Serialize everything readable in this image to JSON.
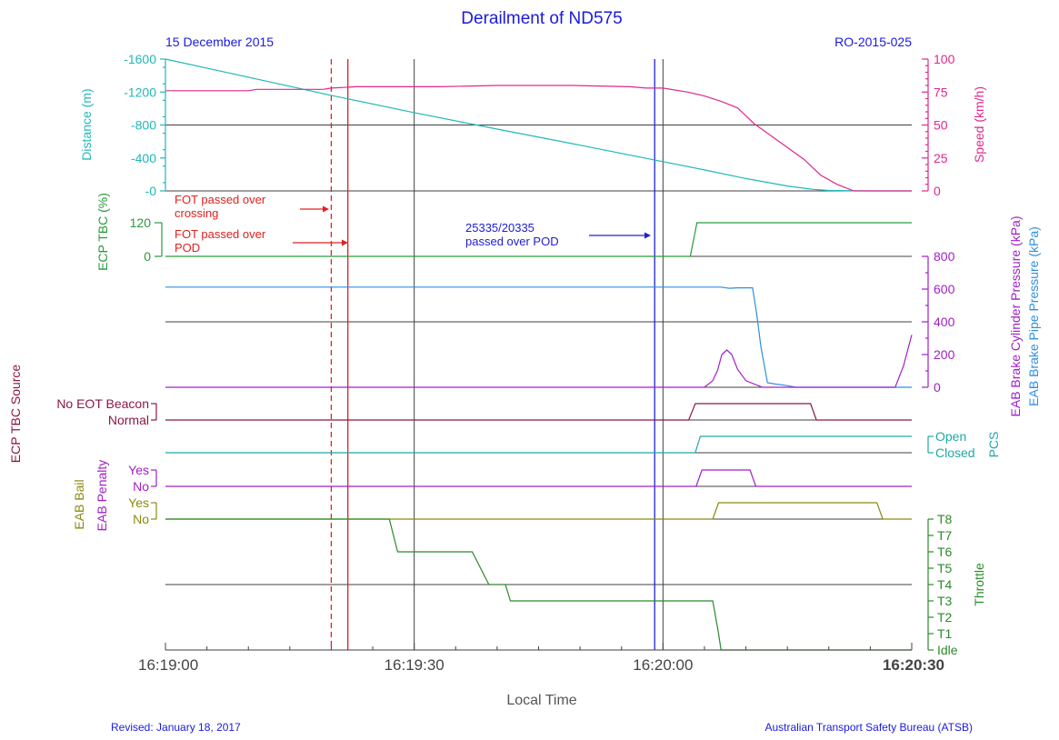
{
  "title": "Derailment of ND575",
  "date_label": "15 December 2015",
  "report_id": "RO-2015-025",
  "xlabel": "Local Time",
  "footer_left": "Revised: January 18, 2017",
  "footer_right": "Australian Transport Safety Bureau (ATSB)",
  "x_axis": {
    "min_s": 0,
    "max_s": 90,
    "ticks": [
      {
        "s": 0,
        "label": "16:19:00"
      },
      {
        "s": 30,
        "label": "16:19:30"
      },
      {
        "s": 60,
        "label": "16:20:00"
      },
      {
        "s": 90,
        "label": "16:20:30"
      }
    ]
  },
  "colors": {
    "title": "#1a1adf",
    "distance": "#20b8b8",
    "speed": "#e0288c",
    "ecp_tbc": "#2a9a3a",
    "brake_pipe": "#2e8fe0",
    "brake_cylinder": "#a020c8",
    "ecp_source": "#8a1848",
    "pcs": "#20a8a8",
    "eab_penalty": "#a020c8",
    "eab_bail": "#8a8a10",
    "throttle": "#2a8a2a",
    "event_red": "#e02020",
    "event_blue": "#2020d0",
    "grid": "#404040"
  },
  "chart_data": {
    "type": "line",
    "time_unit": "seconds after 16:19:00",
    "events": [
      {
        "label": "FOT passed over crossing",
        "label_lines": [
          "FOT passed over",
          "crossing"
        ],
        "t": 20.0,
        "style": "dashed",
        "color": "#e02020"
      },
      {
        "label": "FOT passed over POD",
        "label_lines": [
          "FOT passed over",
          "POD"
        ],
        "t": 22.0,
        "style": "solid",
        "color": "#e02020"
      },
      {
        "label": "25335/20335 passed over POD",
        "label_lines": [
          "25335/20335",
          "passed over POD"
        ],
        "t": 59.0,
        "style": "solid",
        "color": "#2020d0"
      },
      {
        "label": "",
        "label_lines": [],
        "t": 60.0,
        "style": "gray",
        "color": "#404040"
      }
    ],
    "panels": [
      {
        "name": "distance-speed",
        "series": [
          {
            "name": "Distance (m)",
            "axis": "left",
            "ticks": [
              "-1600",
              "-1200",
              "-800",
              "-400",
              "-0"
            ],
            "tick_values": [
              -1600,
              -1200,
              -800,
              -400,
              0
            ],
            "ylim": [
              -1600,
              0
            ],
            "x": [
              0,
              10,
              20,
              30,
              40,
              50,
              60,
              65,
              70,
              75,
              78,
              80,
              85,
              90
            ],
            "y": [
              -1600,
              -1380,
              -1160,
              -950,
              -750,
              -555,
              -355,
              -255,
              -150,
              -60,
              -20,
              -5,
              0,
              0
            ]
          },
          {
            "name": "Speed (km/h)",
            "axis": "right",
            "ticks": [
              "100",
              "75",
              "50",
              "25",
              "0"
            ],
            "tick_values": [
              100,
              75,
              50,
              25,
              0
            ],
            "ylim": [
              0,
              100
            ],
            "x": [
              0,
              5,
              10,
              11,
              15,
              19,
              20,
              23,
              25,
              28,
              33,
              40,
              49,
              56,
              58,
              60,
              63,
              65,
              67,
              69,
              70,
              71,
              73,
              75,
              77,
              79,
              81,
              83,
              85,
              90
            ],
            "y": [
              76,
              76,
              76,
              77,
              77,
              77,
              78,
              79,
              79,
              79,
              79,
              80,
              80,
              79,
              78,
              78,
              75,
              72,
              68,
              63,
              57,
              51,
              42,
              33,
              24,
              12,
              5,
              0,
              0,
              0
            ]
          }
        ]
      },
      {
        "name": "ecp-tbc",
        "series": [
          {
            "name": "ECP TBC (%)",
            "axis": "left",
            "ticks": [
              "120",
              "0"
            ],
            "tick_values": [
              120,
              0
            ],
            "ylim": [
              0,
              120
            ],
            "x": [
              0,
              63.3,
              64.1,
              90
            ],
            "y": [
              0,
              0,
              120,
              120
            ]
          }
        ]
      },
      {
        "name": "brake-pressures",
        "series": [
          {
            "name": "EAB Brake Pipe Pressure (kPa)",
            "axis": "right",
            "ticks": [
              "800",
              "600",
              "400",
              "200",
              "0"
            ],
            "tick_values": [
              800,
              600,
              400,
              200,
              0
            ],
            "ylim": [
              0,
              800
            ],
            "x": [
              0,
              66,
              67,
              68,
              69,
              70,
              70.8,
              71.3,
              71.8,
              72.6,
              73.5,
              75,
              76,
              90
            ],
            "y": [
              612,
              612,
              612,
              605,
              608,
              608,
              608,
              450,
              250,
              28,
              20,
              10,
              0,
              0
            ]
          },
          {
            "name": "EAB Brake Cylinder Pressure (kPa)",
            "axis": "right",
            "ticks": [],
            "tick_values": [],
            "ylim": [
              0,
              800
            ],
            "x": [
              0,
              65,
              66,
              66.6,
              67.1,
              67.7,
              68.3,
              69,
              70,
              72,
              88,
              89,
              90
            ],
            "y": [
              0,
              0,
              40,
              105,
              200,
              228,
              200,
              110,
              40,
              0,
              0,
              130,
              320
            ]
          }
        ]
      },
      {
        "name": "ecp-tbc-source",
        "series": [
          {
            "name": "ECP TBC Source",
            "axis": "left",
            "states": [
              "Normal",
              "No EOT Beacon"
            ],
            "x": [
              0,
              63.1,
              63.9,
              77.8,
              78.5,
              90
            ],
            "y": [
              0,
              0,
              1,
              1,
              0,
              0
            ]
          }
        ]
      },
      {
        "name": "pcs",
        "series": [
          {
            "name": "PCS",
            "axis": "right",
            "states": [
              "Closed",
              "Open"
            ],
            "x": [
              0,
              63.9,
              64.5,
              90
            ],
            "y": [
              0,
              0,
              1,
              1
            ]
          }
        ]
      },
      {
        "name": "eab-penalty",
        "series": [
          {
            "name": "EAB Penalty",
            "axis": "left",
            "states": [
              "No",
              "Yes"
            ],
            "x": [
              0,
              64.0,
              64.7,
              70.5,
              71.2,
              90
            ],
            "y": [
              0,
              0,
              1,
              1,
              0,
              0
            ]
          }
        ]
      },
      {
        "name": "eab-bail",
        "series": [
          {
            "name": "EAB Bail",
            "axis": "left",
            "states": [
              "No",
              "Yes"
            ],
            "x": [
              0,
              66.0,
              66.7,
              85.8,
              86.5,
              90
            ],
            "y": [
              0,
              0,
              1,
              1,
              0,
              0
            ]
          }
        ]
      },
      {
        "name": "throttle",
        "series": [
          {
            "name": "Throttle",
            "axis": "right",
            "levels": [
              "Idle",
              "T1",
              "T2",
              "T3",
              "T4",
              "T5",
              "T6",
              "T7",
              "T8"
            ],
            "x": [
              0,
              27.0,
              28.0,
              37.0,
              39.0,
              40.6,
              41.0,
              41.6,
              66.0,
              66.7,
              67.0,
              90
            ],
            "y": [
              8,
              8,
              6,
              6,
              4,
              4,
              4,
              3,
              3,
              1,
              0,
              0
            ]
          }
        ]
      }
    ]
  }
}
